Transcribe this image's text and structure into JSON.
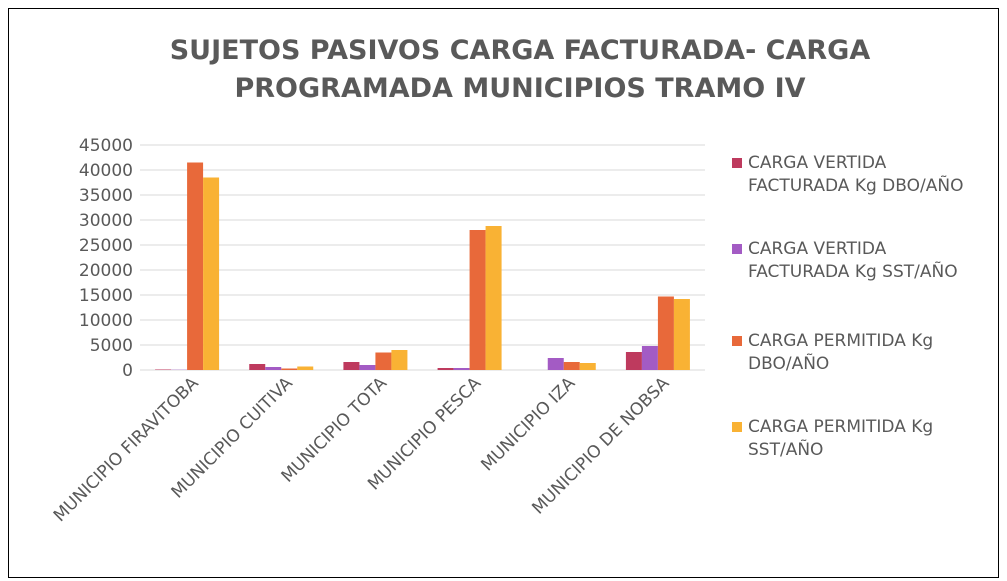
{
  "chart_data": {
    "type": "bar",
    "title": "SUJETOS PASIVOS CARGA FACTURADA- CARGA PROGRAMADA MUNICIPIOS TRAMO IV",
    "categories": [
      "MUNICIPIO FIRAVITOBA",
      "MUNICIPIO CUITIVA",
      "MUNICIPIO TOTA",
      "MUNICIPIO PESCA",
      "MUNICIPIO IZA",
      "MUNICIPIO DE NOBSA"
    ],
    "series": [
      {
        "name": "CARGA VERTIDA FACTURADA Kg DBO/AÑO",
        "color": "#be3a5e",
        "values": [
          100,
          1200,
          1600,
          400,
          0,
          3600
        ]
      },
      {
        "name": "CARGA VERTIDA FACTURADA Kg SST/AÑO",
        "color": "#a35bc4",
        "values": [
          50,
          600,
          1000,
          400,
          2400,
          4800
        ]
      },
      {
        "name": "CARGA PERMITIDA Kg DBO/AÑO",
        "color": "#e8693a",
        "values": [
          41500,
          300,
          3500,
          28000,
          1600,
          14700
        ]
      },
      {
        "name": "CARGA PERMITIDA Kg SST/AÑO",
        "color": "#f9b234",
        "values": [
          38500,
          700,
          4000,
          28800,
          1400,
          14200
        ]
      }
    ],
    "ylim": [
      0,
      45000
    ],
    "yticks": [
      0,
      5000,
      10000,
      15000,
      20000,
      25000,
      30000,
      35000,
      40000,
      45000
    ],
    "grid": true
  }
}
